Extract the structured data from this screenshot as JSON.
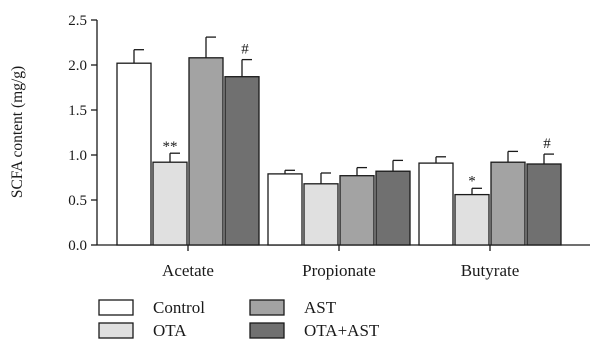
{
  "chart_data": {
    "type": "bar",
    "ylabel": "SCFA content (mg/g)",
    "ylim": [
      0,
      2.5
    ],
    "yticks": [
      "0.0",
      "0.5",
      "1.0",
      "1.5",
      "2.0",
      "2.5"
    ],
    "categories": [
      "Acetate",
      "Propionate",
      "Butyrate"
    ],
    "series": [
      {
        "name": "Control",
        "color": "#ffffff",
        "values": [
          2.02,
          0.79,
          0.91
        ],
        "errors": [
          0.15,
          0.04,
          0.07
        ]
      },
      {
        "name": "OTA",
        "color": "#e0e0e0",
        "values": [
          0.92,
          0.68,
          0.56
        ],
        "errors": [
          0.1,
          0.12,
          0.07
        ]
      },
      {
        "name": "AST",
        "color": "#a3a3a3",
        "values": [
          2.08,
          0.77,
          0.92
        ],
        "errors": [
          0.23,
          0.09,
          0.12
        ]
      },
      {
        "name": "OTA+AST",
        "color": "#707070",
        "values": [
          1.87,
          0.82,
          0.9
        ],
        "errors": [
          0.19,
          0.12,
          0.11
        ]
      }
    ],
    "annotations": [
      {
        "category": "Acetate",
        "series": "OTA",
        "text": "**"
      },
      {
        "category": "Acetate",
        "series": "OTA+AST",
        "text": "#"
      },
      {
        "category": "Butyrate",
        "series": "OTA",
        "text": "*"
      },
      {
        "category": "Butyrate",
        "series": "OTA+AST",
        "text": "#"
      }
    ],
    "legend": {
      "placement": "bottom-left",
      "columns": 2
    }
  }
}
